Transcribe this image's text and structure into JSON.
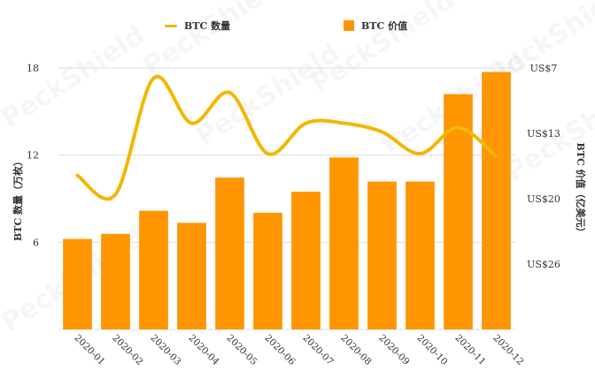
{
  "legend": {
    "line_label": "BTC 数量",
    "bar_label": "BTC 价值"
  },
  "watermark": "PeckShield",
  "colors": {
    "bar": "#ff9500",
    "line": "#f2b705",
    "grid": "#dddddd",
    "axis_text": "#333333"
  },
  "chart_data": {
    "type": "bar",
    "title": "",
    "categories": [
      "2020-01",
      "2020-02",
      "2020-03",
      "2020-04",
      "2020-05",
      "2020-06",
      "2020-07",
      "2020-08",
      "2020-09",
      "2020-10",
      "2020-11",
      "2020-12"
    ],
    "series": [
      {
        "name": "BTC 价值",
        "type": "bar",
        "axis": "right",
        "values": [
          9.0,
          9.5,
          11.8,
          10.6,
          15.1,
          11.6,
          13.7,
          17.1,
          14.7,
          14.7,
          23.4,
          25.6
        ]
      },
      {
        "name": "BTC 数量",
        "type": "line",
        "axis": "left",
        "values": [
          10.6,
          9.3,
          17.3,
          14.2,
          16.3,
          12.1,
          14.2,
          14.2,
          13.6,
          12.1,
          13.9,
          11.9
        ]
      }
    ],
    "ylabel": "BTC 数量（万枚）",
    "y2label": "BTC 价值（亿美元）",
    "ylim": [
      0,
      18
    ],
    "yticks": [
      "6",
      "12",
      "18"
    ],
    "y2lim": [
      0,
      26
    ],
    "y2ticks": [
      "US$7",
      "US$13",
      "US$20",
      "US$26"
    ],
    "grid": true,
    "legend_position": "top"
  }
}
